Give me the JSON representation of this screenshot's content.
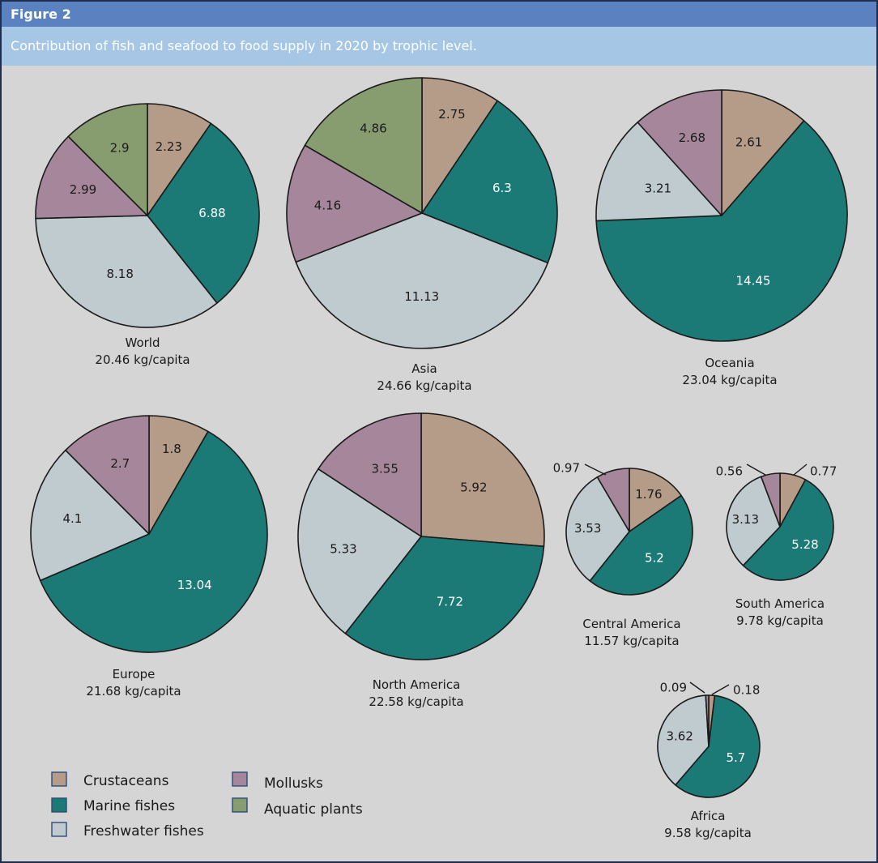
{
  "figure": {
    "label": "Figure 2",
    "title": "Contribution of fish and seafood to food supply in 2020 by trophic level."
  },
  "colors": {
    "Crustaceans": "#b59c88",
    "Marine fishes": "#1b7a76",
    "Freshwater fishes": "#bfcbcf",
    "Mollusks": "#a6869a",
    "Aquatic plants": "#889d6f",
    "outline": "#1a1a1a",
    "header": "#5b82c0",
    "title_band": "#a6c6e6",
    "background": "#d4d5d4"
  },
  "chart_data": {
    "type": "pie",
    "title": "Contribution of fish and seafood to food supply in 2020 by trophic level.",
    "unit": "kg/capita",
    "categories": [
      "Crustaceans",
      "Marine fishes",
      "Freshwater fishes",
      "Mollusks",
      "Aquatic plants"
    ],
    "legend": {
      "placement": "bottom-left",
      "items": [
        "Crustaceans",
        "Marine fishes",
        "Freshwater fishes",
        "Mollusks",
        "Aquatic plants"
      ]
    },
    "pies": [
      {
        "name": "World",
        "total_label": "20.46 kg/capita",
        "slices": [
          {
            "category": "Crustaceans",
            "value": 2.23,
            "label": "2.23"
          },
          {
            "category": "Marine fishes",
            "value": 6.88,
            "label": "6.88"
          },
          {
            "category": "Freshwater fishes",
            "value": 8.18,
            "label": "8.18"
          },
          {
            "category": "Mollusks",
            "value": 2.99,
            "label": "2.99"
          },
          {
            "category": "Aquatic plants",
            "value": 2.9,
            "label": "2.9"
          }
        ]
      },
      {
        "name": "Asia",
        "total_label": "24.66 kg/capita",
        "slices": [
          {
            "category": "Crustaceans",
            "value": 2.75,
            "label": "2.75"
          },
          {
            "category": "Marine fishes",
            "value": 6.3,
            "label": "6.3"
          },
          {
            "category": "Freshwater fishes",
            "value": 11.13,
            "label": "11.13"
          },
          {
            "category": "Mollusks",
            "value": 4.16,
            "label": "4.16"
          },
          {
            "category": "Aquatic plants",
            "value": 4.86,
            "label": "4.86"
          }
        ]
      },
      {
        "name": "Oceania",
        "total_label": "23.04 kg/capita",
        "slices": [
          {
            "category": "Crustaceans",
            "value": 2.61,
            "label": "2.61"
          },
          {
            "category": "Marine fishes",
            "value": 14.45,
            "label": "14.45"
          },
          {
            "category": "Freshwater fishes",
            "value": 3.21,
            "label": "3.21"
          },
          {
            "category": "Mollusks",
            "value": 2.68,
            "label": "2.68"
          }
        ]
      },
      {
        "name": "Europe",
        "total_label": "21.68 kg/capita",
        "slices": [
          {
            "category": "Crustaceans",
            "value": 1.8,
            "label": "1.8"
          },
          {
            "category": "Marine fishes",
            "value": 13.04,
            "label": "13.04"
          },
          {
            "category": "Freshwater fishes",
            "value": 4.1,
            "label": "4.1"
          },
          {
            "category": "Mollusks",
            "value": 2.7,
            "label": "2.7"
          }
        ]
      },
      {
        "name": "North America",
        "total_label": "22.58 kg/capita",
        "slices": [
          {
            "category": "Crustaceans",
            "value": 5.92,
            "label": "5.92"
          },
          {
            "category": "Marine fishes",
            "value": 7.72,
            "label": "7.72"
          },
          {
            "category": "Freshwater fishes",
            "value": 5.33,
            "label": "5.33"
          },
          {
            "category": "Mollusks",
            "value": 3.55,
            "label": "3.55"
          }
        ]
      },
      {
        "name": "Central America",
        "total_label": "11.57 kg/capita",
        "slices": [
          {
            "category": "Crustaceans",
            "value": 1.76,
            "label": "1.76"
          },
          {
            "category": "Marine fishes",
            "value": 5.2,
            "label": "5.2"
          },
          {
            "category": "Freshwater fishes",
            "value": 3.53,
            "label": "3.53"
          },
          {
            "category": "Mollusks",
            "value": 0.97,
            "label": "0.97"
          }
        ]
      },
      {
        "name": "South America",
        "total_label": "9.78 kg/capita",
        "slices": [
          {
            "category": "Crustaceans",
            "value": 0.77,
            "label": "0.77"
          },
          {
            "category": "Marine fishes",
            "value": 5.28,
            "label": "5.28"
          },
          {
            "category": "Freshwater fishes",
            "value": 3.13,
            "label": "3.13"
          },
          {
            "category": "Mollusks",
            "value": 0.56,
            "label": "0.56"
          }
        ]
      },
      {
        "name": "Africa",
        "total_label": "9.58 kg/capita",
        "slices": [
          {
            "category": "Crustaceans",
            "value": 0.18,
            "label": "0.18"
          },
          {
            "category": "Marine fishes",
            "value": 5.7,
            "label": "5.7"
          },
          {
            "category": "Freshwater fishes",
            "value": 3.62,
            "label": "3.62"
          },
          {
            "category": "Mollusks",
            "value": 0.09,
            "label": "0.09"
          }
        ]
      }
    ]
  }
}
